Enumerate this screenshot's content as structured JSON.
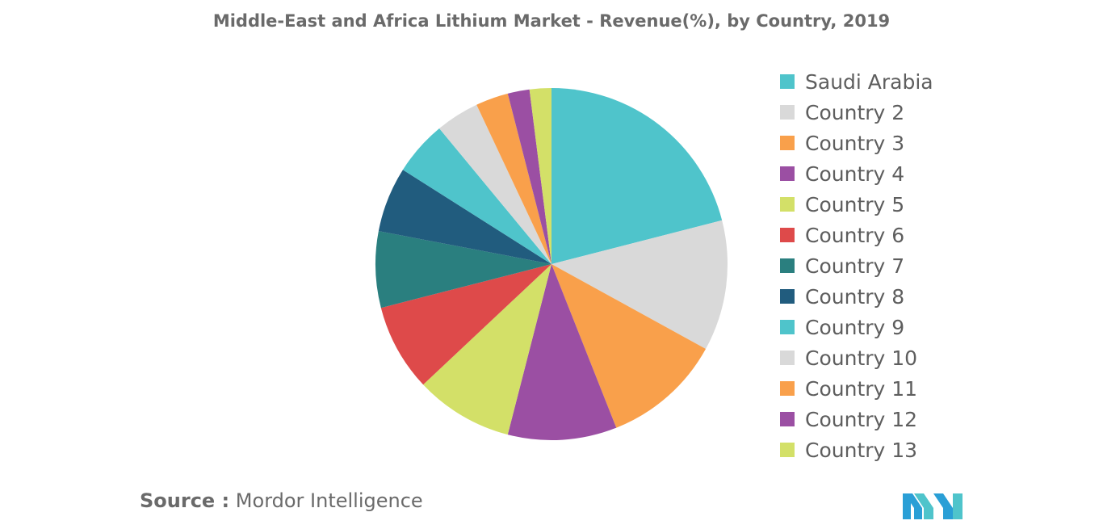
{
  "chart_data": {
    "type": "pie",
    "title": "Middle-East and Africa Lithium Market - Revenue(%), by Country, 2019",
    "legend_position": "right",
    "categories": [
      "Saudi Arabia",
      "Country 2",
      "Country 3",
      "Country 4",
      "Country 5",
      "Country 6",
      "Country 7",
      "Country 8",
      "Country 9",
      "Country 10",
      "Country 11",
      "Country 12",
      "Country 13"
    ],
    "values": [
      21,
      12,
      11,
      10,
      9,
      8,
      7,
      6,
      5,
      4,
      3,
      2,
      2
    ],
    "colors": [
      "#4fc4cb",
      "#d9d9d9",
      "#f9a04b",
      "#9b4fa3",
      "#d3e068",
      "#de4a4a",
      "#2a7f7f",
      "#215c7e",
      "#4fc4cb",
      "#d9d9d9",
      "#f9a04b",
      "#9b4fa3",
      "#d3e068"
    ]
  },
  "source": {
    "label": "Source :",
    "value": "Mordor Intelligence"
  },
  "logo": {
    "name": "mordor-intelligence-logo"
  }
}
